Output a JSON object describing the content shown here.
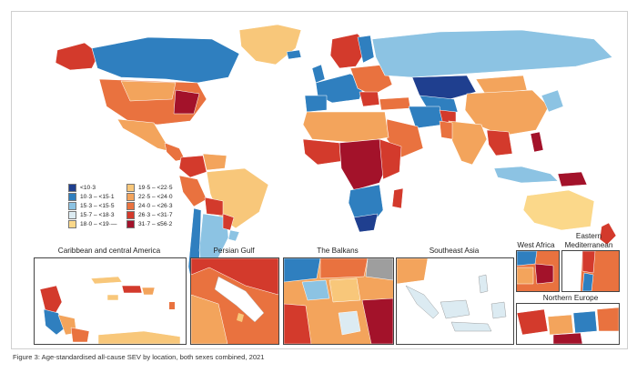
{
  "legend": {
    "items": [
      {
        "label": "<10·3",
        "color": "#1f3f8f"
      },
      {
        "label": "10·3 – <15·1",
        "color": "#2f7fbf"
      },
      {
        "label": "15·3 – <15·5",
        "color": "#8cc3e3"
      },
      {
        "label": "15·7 – <18·3",
        "color": "#dcebf2"
      },
      {
        "label": "18·0 – <19·—",
        "color": "#fbd88a"
      },
      {
        "label": "19·5 – <22·5",
        "color": "#f8c77a"
      },
      {
        "label": "22·5 – <24·0",
        "color": "#f3a45c"
      },
      {
        "label": "24·0 – <26·3",
        "color": "#e9723f"
      },
      {
        "label": "26·3 – <31·7",
        "color": "#d33a2c"
      },
      {
        "label": "31·7 – ≤56·2",
        "color": "#a3122a"
      }
    ]
  },
  "insets": {
    "caribbean": "Caribbean and central America",
    "persian_gulf": "Persian Gulf",
    "balkans": "The Balkans",
    "southeast_asia": "Southeast Asia",
    "west_africa": "West Africa",
    "eastern_med_line1": "Eastern",
    "eastern_med_line2": "Mediterranean",
    "northern_europe": "Northern Europe"
  },
  "caption": {
    "label": "Figure 3:",
    "text": " Age-standardised all-cause SEV by location, both sexes combined, 2021"
  }
}
